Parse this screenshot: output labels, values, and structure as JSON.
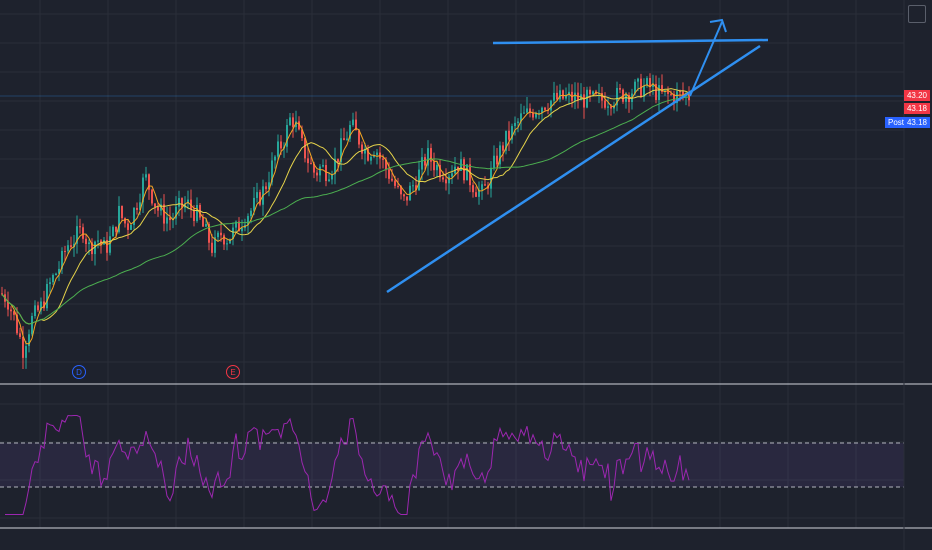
{
  "price_axis": {
    "tags": [
      {
        "label": "43.20",
        "color": "#f23645"
      },
      {
        "label": "43.18",
        "color": "#f23645"
      },
      {
        "label": "43.18",
        "color": "#2962ff"
      }
    ],
    "post_label": "Post"
  },
  "event_markers": [
    {
      "letter": "D",
      "color": "#2962ff"
    },
    {
      "letter": "E",
      "color": "#f23645"
    }
  ],
  "chart_data": {
    "type": "candlestick",
    "title": "",
    "colors": {
      "up": "#26a69a",
      "down": "#ef5350",
      "ma_fast": "#f5a623",
      "ma_mid": "#e6d34a",
      "ma_slow": "#4caf50",
      "trendline": "#2f8ff0",
      "rsi": "#9c27b0",
      "rsi_band": "#7e57c2"
    },
    "close_path": [
      [
        0,
        34.6
      ],
      [
        6,
        34.4
      ],
      [
        14,
        33.4
      ],
      [
        22,
        32.2
      ],
      [
        30,
        33.4
      ],
      [
        40,
        34.0
      ],
      [
        50,
        35.1
      ],
      [
        60,
        35.9
      ],
      [
        66,
        36.7
      ],
      [
        74,
        37.0
      ],
      [
        82,
        37.4
      ],
      [
        88,
        36.6
      ],
      [
        96,
        37.0
      ],
      [
        104,
        36.5
      ],
      [
        112,
        37.2
      ],
      [
        118,
        38.1
      ],
      [
        126,
        37.5
      ],
      [
        134,
        38.3
      ],
      [
        144,
        39.7
      ],
      [
        150,
        39.0
      ],
      [
        156,
        38.3
      ],
      [
        162,
        38.0
      ],
      [
        170,
        37.8
      ],
      [
        178,
        38.3
      ],
      [
        186,
        38.5
      ],
      [
        196,
        38.0
      ],
      [
        204,
        37.3
      ],
      [
        212,
        36.5
      ],
      [
        220,
        37.2
      ],
      [
        226,
        37.0
      ],
      [
        236,
        37.4
      ],
      [
        244,
        38.0
      ],
      [
        250,
        38.2
      ],
      [
        256,
        38.6
      ],
      [
        264,
        39.2
      ],
      [
        270,
        40.0
      ],
      [
        276,
        40.7
      ],
      [
        284,
        41.4
      ],
      [
        290,
        42.3
      ],
      [
        294,
        42.0
      ],
      [
        300,
        41.1
      ],
      [
        308,
        40.3
      ],
      [
        314,
        39.8
      ],
      [
        320,
        40.1
      ],
      [
        326,
        39.9
      ],
      [
        334,
        40.3
      ],
      [
        342,
        41.1
      ],
      [
        350,
        41.9
      ],
      [
        358,
        41.3
      ],
      [
        366,
        40.7
      ],
      [
        374,
        41.0
      ],
      [
        380,
        40.4
      ],
      [
        388,
        39.8
      ],
      [
        396,
        39.1
      ],
      [
        402,
        38.5
      ],
      [
        408,
        39.0
      ],
      [
        416,
        39.6
      ],
      [
        426,
        40.6
      ],
      [
        436,
        40.1
      ],
      [
        446,
        39.8
      ],
      [
        456,
        40.3
      ],
      [
        464,
        39.9
      ],
      [
        474,
        39.2
      ],
      [
        482,
        38.9
      ],
      [
        488,
        39.6
      ],
      [
        496,
        40.5
      ],
      [
        504,
        41.2
      ],
      [
        512,
        41.7
      ],
      [
        520,
        42.2
      ],
      [
        530,
        42.5
      ],
      [
        540,
        42.8
      ],
      [
        552,
        43.0
      ],
      [
        564,
        43.1
      ],
      [
        576,
        43.1
      ],
      [
        588,
        43.0
      ],
      [
        600,
        43.0
      ],
      [
        612,
        43.1
      ],
      [
        624,
        43.3
      ],
      [
        636,
        43.5
      ],
      [
        648,
        43.6
      ],
      [
        660,
        43.2
      ],
      [
        670,
        43.2
      ],
      [
        680,
        43.2
      ],
      [
        690,
        43.18
      ]
    ],
    "rsi": {
      "upper_band": 70,
      "lower_band": 30
    }
  }
}
